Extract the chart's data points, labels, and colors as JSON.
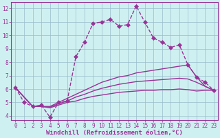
{
  "xlabel": "Windchill (Refroidissement éolien,°C)",
  "background_color": "#cff0f0",
  "grid_color": "#99bbcc",
  "line_color": "#993399",
  "xlim": [
    -0.5,
    23.5
  ],
  "ylim": [
    3.7,
    12.5
  ],
  "xticks": [
    0,
    1,
    2,
    3,
    4,
    5,
    6,
    7,
    8,
    9,
    10,
    11,
    12,
    13,
    14,
    15,
    16,
    17,
    18,
    19,
    20,
    21,
    22,
    23
  ],
  "yticks": [
    4,
    5,
    6,
    7,
    8,
    9,
    10,
    11,
    12
  ],
  "line1_x": [
    0,
    1,
    2,
    3,
    4,
    5,
    6,
    7,
    8,
    9,
    10,
    11,
    12,
    13,
    14,
    15,
    16,
    17,
    18,
    19,
    20,
    21,
    22,
    23
  ],
  "line1_y": [
    6.1,
    5.0,
    4.7,
    4.8,
    3.9,
    5.0,
    5.1,
    8.4,
    9.5,
    10.9,
    11.0,
    11.2,
    10.7,
    10.8,
    12.2,
    11.0,
    9.8,
    9.5,
    9.1,
    9.3,
    7.8,
    6.9,
    6.5,
    5.9
  ],
  "line2_x": [
    0,
    2,
    3,
    4,
    5,
    6,
    7,
    8,
    9,
    10,
    11,
    12,
    13,
    14,
    15,
    16,
    17,
    18,
    19,
    20,
    21,
    22,
    23
  ],
  "line2_y": [
    6.1,
    4.7,
    4.7,
    4.7,
    5.0,
    5.3,
    5.6,
    5.9,
    6.2,
    6.5,
    6.7,
    6.9,
    7.0,
    7.2,
    7.3,
    7.4,
    7.5,
    7.6,
    7.7,
    7.8,
    6.9,
    6.2,
    5.9
  ],
  "line3_x": [
    0,
    2,
    3,
    4,
    5,
    6,
    7,
    8,
    9,
    10,
    11,
    12,
    13,
    14,
    15,
    16,
    17,
    18,
    19,
    20,
    21,
    22,
    23
  ],
  "line3_y": [
    6.1,
    4.7,
    4.7,
    4.65,
    4.9,
    5.1,
    5.4,
    5.6,
    5.85,
    6.05,
    6.2,
    6.35,
    6.45,
    6.55,
    6.6,
    6.65,
    6.7,
    6.75,
    6.8,
    6.75,
    6.5,
    6.2,
    5.9
  ],
  "line4_x": [
    0,
    2,
    3,
    4,
    5,
    6,
    7,
    8,
    9,
    10,
    11,
    12,
    13,
    14,
    15,
    16,
    17,
    18,
    19,
    20,
    21,
    22,
    23
  ],
  "line4_y": [
    6.1,
    4.7,
    4.7,
    4.6,
    4.8,
    5.0,
    5.1,
    5.3,
    5.45,
    5.55,
    5.65,
    5.75,
    5.8,
    5.85,
    5.9,
    5.9,
    5.95,
    5.95,
    6.0,
    5.95,
    5.85,
    5.9,
    5.9
  ],
  "markersize": 3,
  "linewidth": 1.0,
  "tick_fontsize": 5.5,
  "label_fontsize": 6.5
}
